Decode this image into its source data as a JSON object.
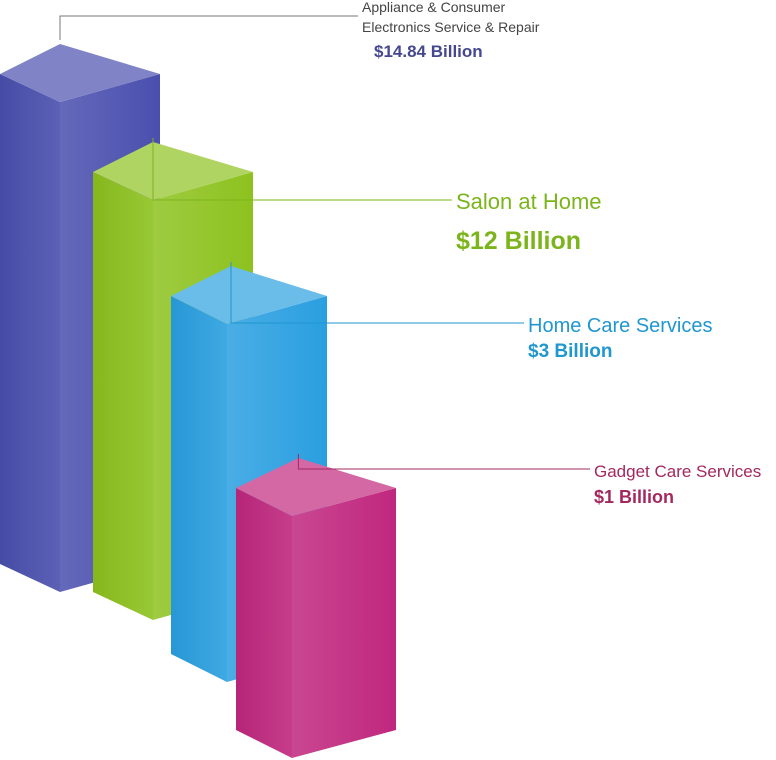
{
  "chart_data": {
    "type": "bar",
    "title": "",
    "xlabel": "",
    "ylabel": "",
    "categories": [
      "Appliance & Consumer Electronics Service & Repair",
      "Salon at Home",
      "Home Care Services",
      "Gadget Care Services"
    ],
    "values": [
      14.84,
      12,
      3,
      1
    ],
    "unit": "Billion USD",
    "labels": [
      {
        "name_lines": [
          "Appliance & Consumer",
          "Electronics Service & Repair"
        ],
        "value_text": "$14.84 Billion"
      },
      {
        "name_lines": [
          "Salon at Home"
        ],
        "value_text": "$12 Billion"
      },
      {
        "name_lines": [
          "Home Care Services"
        ],
        "value_text": "$3 Billion"
      },
      {
        "name_lines": [
          "Gadget Care Services"
        ],
        "value_text": "$1 Billion"
      }
    ],
    "colors": [
      "#4a4fae",
      "#8dc21f",
      "#2a9fe0",
      "#c0277e"
    ],
    "label_colors": [
      "#45478f",
      "#7cb51b",
      "#1f97cf",
      "#a3285f"
    ],
    "grid": false,
    "legend": "none"
  }
}
